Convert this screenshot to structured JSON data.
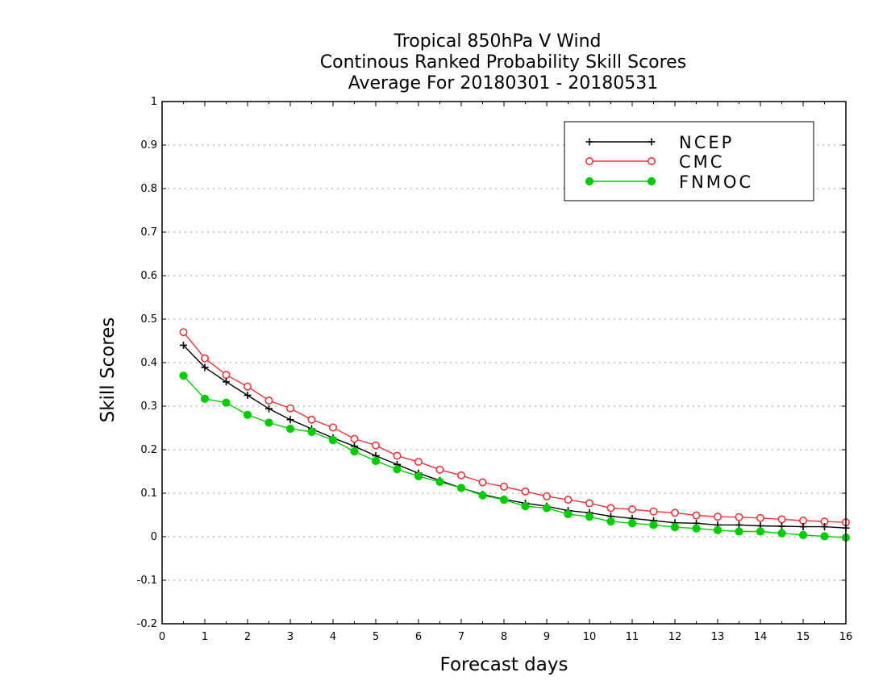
{
  "title_lines": [
    "Tropical 850hPa V Wind",
    "Continous Ranked Probability Skill Scores",
    "Average For 20180301 - 20180531"
  ],
  "chart_data": {
    "type": "line",
    "title": "Tropical 850hPa V Wind / Continous Ranked Probability Skill Scores / Average For 20180301 - 20180531",
    "xlabel": "Forecast days",
    "ylabel": "Skill Scores",
    "xlim": [
      0,
      16
    ],
    "ylim": [
      -0.2,
      1
    ],
    "xticks": [
      0,
      1,
      2,
      3,
      4,
      5,
      6,
      7,
      8,
      9,
      10,
      11,
      12,
      13,
      14,
      15,
      16
    ],
    "yticks": [
      -0.2,
      -0.1,
      0,
      0.1,
      0.2,
      0.3,
      0.4,
      0.5,
      0.6,
      0.7,
      0.8,
      0.9,
      1
    ],
    "ytick_labels": [
      "-0.2",
      "-0.1",
      "0",
      "0.1",
      "0.2",
      "0.3",
      "0.4",
      "0.5",
      "0.6",
      "0.7",
      "0.8",
      "0.9",
      "1"
    ],
    "grid": "horizontal dotted",
    "legend_position": "top-right",
    "x": [
      0.5,
      1,
      1.5,
      2,
      2.5,
      3,
      3.5,
      4,
      4.5,
      5,
      5.5,
      6,
      6.5,
      7,
      7.5,
      8,
      8.5,
      9,
      9.5,
      10,
      10.5,
      11,
      11.5,
      12,
      12.5,
      13,
      13.5,
      14,
      14.5,
      15,
      15.5,
      16
    ],
    "series": [
      {
        "name": "NCEP",
        "color": "#000000",
        "marker": "plus",
        "values": [
          0.44,
          0.389,
          0.356,
          0.325,
          0.294,
          0.269,
          0.248,
          0.227,
          0.208,
          0.186,
          0.166,
          0.146,
          0.129,
          0.112,
          0.097,
          0.086,
          0.077,
          0.07,
          0.06,
          0.055,
          0.047,
          0.042,
          0.037,
          0.032,
          0.031,
          0.027,
          0.027,
          0.025,
          0.024,
          0.023,
          0.023,
          0.02
        ]
      },
      {
        "name": "CMC",
        "color": "#e8343a",
        "marker": "open-circle",
        "values": [
          0.47,
          0.41,
          0.372,
          0.345,
          0.313,
          0.295,
          0.269,
          0.251,
          0.225,
          0.21,
          0.186,
          0.172,
          0.154,
          0.141,
          0.125,
          0.115,
          0.104,
          0.093,
          0.085,
          0.077,
          0.066,
          0.063,
          0.058,
          0.055,
          0.049,
          0.046,
          0.045,
          0.043,
          0.04,
          0.037,
          0.035,
          0.033
        ]
      },
      {
        "name": "FNMOC",
        "color": "#00cc00",
        "marker": "filled-circle",
        "values": [
          0.37,
          0.317,
          0.308,
          0.28,
          0.262,
          0.248,
          0.241,
          0.222,
          0.196,
          0.174,
          0.155,
          0.139,
          0.126,
          0.112,
          0.095,
          0.085,
          0.07,
          0.066,
          0.052,
          0.046,
          0.035,
          0.031,
          0.027,
          0.022,
          0.019,
          0.015,
          0.012,
          0.012,
          0.008,
          0.004,
          0.001,
          -0.002
        ]
      }
    ]
  }
}
